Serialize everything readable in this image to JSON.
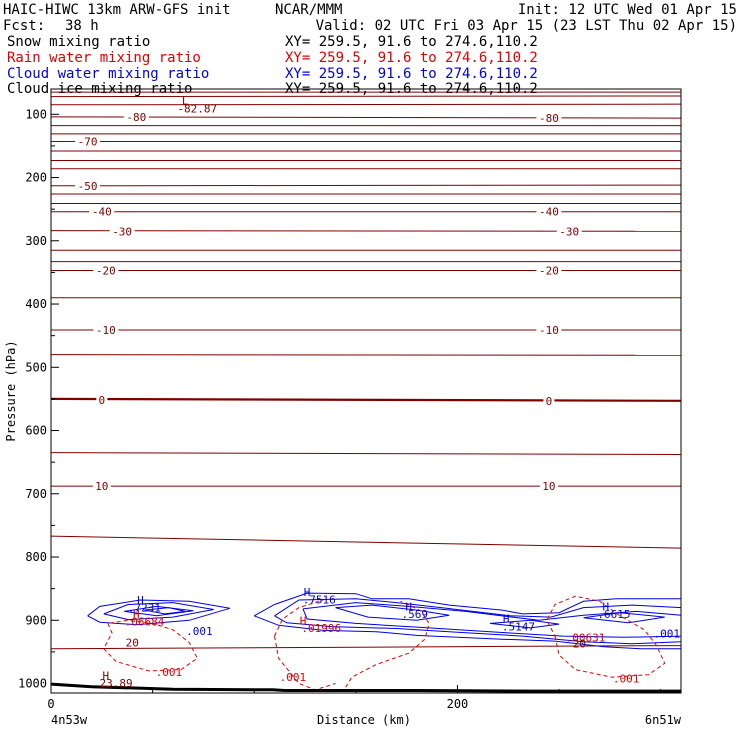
{
  "header": {
    "model": "HAIC-HIWC 13km ARW-GFS init",
    "org": "NCAR/MMM",
    "init": "Init: 12 UTC Wed 01 Apr 15",
    "fcst_label": "Fcst:",
    "fcst_value": "38 h",
    "valid": "Valid: 02 UTC Fri 03 Apr 15 (23 LST Thu 02 Apr 15)"
  },
  "fields": [
    {
      "name": "Snow mixing ratio",
      "xy": "XY= 259.5, 91.6 to 274.6,110.2",
      "color": "#000000"
    },
    {
      "name": "Rain water mixing ratio",
      "xy": "XY= 259.5, 91.6 to 274.6,110.2",
      "color": "#e00000"
    },
    {
      "name": "Cloud water mixing ratio",
      "xy": "XY= 259.5, 91.6 to 274.6,110.2",
      "color": "#0000e0"
    },
    {
      "name": "Cloud ice mixing ratio",
      "xy": "XY= 259.5, 91.6 to 274.6,110.2",
      "color": "#000000"
    }
  ],
  "colors": {
    "temperature": "#800000",
    "rain": "#e00000",
    "cloud": "#0000e0",
    "terrain": "#000000"
  },
  "chart_data": {
    "type": "cross-section contour",
    "xlabel": "Distance (km)",
    "ylabel": "Pressure (hPa)",
    "xlim": [
      0,
      310
    ],
    "ylim": [
      1015,
      60
    ],
    "x_ticks": [
      {
        "value": 0,
        "label": "0"
      },
      {
        "value": 200,
        "label": "200"
      }
    ],
    "y_ticks": [
      {
        "value": 100,
        "label": "100"
      },
      {
        "value": 200,
        "label": "200"
      },
      {
        "value": 300,
        "label": "300"
      },
      {
        "value": 400,
        "label": "400"
      },
      {
        "value": 500,
        "label": "500"
      },
      {
        "value": 600,
        "label": "600"
      },
      {
        "value": 700,
        "label": "700"
      },
      {
        "value": 800,
        "label": "800"
      },
      {
        "value": 900,
        "label": "900"
      },
      {
        "value": 1000,
        "label": "1000"
      }
    ],
    "left_endpoint": "4n53w",
    "right_endpoint": "6n51w",
    "isotherms": [
      {
        "p": 65,
        "p_end": 65
      },
      {
        "p": 72,
        "p_end": 71
      },
      {
        "p": 85,
        "p_end": 84
      },
      {
        "p": 104,
        "p_end": 106,
        "label": "-80"
      },
      {
        "p": 118,
        "p_end": 118
      },
      {
        "p": 131,
        "p_end": 131
      },
      {
        "p": 143,
        "p_end": 143,
        "label": "-70"
      },
      {
        "p": 158,
        "p_end": 158
      },
      {
        "p": 173,
        "p_end": 173
      },
      {
        "p": 186,
        "p_end": 186
      },
      {
        "p": 213,
        "p_end": 212,
        "label": "-50"
      },
      {
        "p": 226,
        "p_end": 226
      },
      {
        "p": 241,
        "p_end": 241
      },
      {
        "p": 254,
        "p_end": 254,
        "label": "-40"
      },
      {
        "p": 284,
        "p_end": 285,
        "label": "-30"
      },
      {
        "p": 315,
        "p_end": 315
      },
      {
        "p": 333,
        "p_end": 333
      },
      {
        "p": 347,
        "p_end": 347,
        "label": "-20"
      },
      {
        "p": 390,
        "p_end": 390
      },
      {
        "p": 441,
        "p_end": 441,
        "label": "-10"
      },
      {
        "p": 480,
        "p_end": 481
      },
      {
        "p": 550,
        "p_end": 553,
        "label": "0",
        "bold": true
      },
      {
        "p": 635,
        "p_end": 638
      },
      {
        "p": 688,
        "p_end": 688,
        "label": "10"
      },
      {
        "p": 767,
        "p_end": 786
      },
      {
        "p": 945,
        "p_end": 940
      }
    ],
    "isotherm_labels": [
      {
        "x": 42,
        "p": 104,
        "text": "-80"
      },
      {
        "x": 245,
        "p": 106,
        "text": "-80"
      },
      {
        "x": 18,
        "p": 143,
        "text": "-70"
      },
      {
        "x": 18,
        "p": 213,
        "text": "-50"
      },
      {
        "x": 25,
        "p": 254,
        "text": "-40"
      },
      {
        "x": 245,
        "p": 254,
        "text": "-40"
      },
      {
        "x": 35,
        "p": 285,
        "text": "-30"
      },
      {
        "x": 255,
        "p": 285,
        "text": "-30"
      },
      {
        "x": 27,
        "p": 347,
        "text": "-20"
      },
      {
        "x": 245,
        "p": 347,
        "text": "-20"
      },
      {
        "x": 27,
        "p": 441,
        "text": "-10"
      },
      {
        "x": 245,
        "p": 441,
        "text": "-10"
      },
      {
        "x": 25,
        "p": 552,
        "text": "0"
      },
      {
        "x": 245,
        "p": 553,
        "text": "0"
      },
      {
        "x": 25,
        "p": 688,
        "text": "10"
      },
      {
        "x": 245,
        "p": 688,
        "text": "10"
      }
    ],
    "extrema": [
      {
        "x": 66,
        "p": 78,
        "text": "L",
        "color": "temperature"
      },
      {
        "x": 72,
        "p": 91,
        "text": "-82.87",
        "color": "temperature"
      },
      {
        "x": 27,
        "p": 987,
        "text": "H",
        "color": "temperature"
      },
      {
        "x": 32,
        "p": 999,
        "text": "23.89",
        "color": "temperature"
      },
      {
        "x": 44,
        "p": 868,
        "text": "H",
        "color": "cloud"
      },
      {
        "x": 46,
        "p": 880,
        "text": ".7231",
        "color": "cloud"
      },
      {
        "x": 42,
        "p": 890,
        "text": "H",
        "color": "rain"
      },
      {
        "x": 46,
        "p": 902,
        "text": ".06684",
        "color": "rain"
      },
      {
        "x": 73,
        "p": 917,
        "text": ".001",
        "color": "cloud"
      },
      {
        "x": 40,
        "p": 935,
        "text": "20",
        "color": "temperature"
      },
      {
        "x": 58,
        "p": 982,
        "text": ".001",
        "color": "rain"
      },
      {
        "x": 126,
        "p": 855,
        "text": "H",
        "color": "cloud"
      },
      {
        "x": 132,
        "p": 867,
        "text": ".7516",
        "color": "cloud"
      },
      {
        "x": 124,
        "p": 900,
        "text": "H",
        "color": "rain"
      },
      {
        "x": 133,
        "p": 912,
        "text": ".01996",
        "color": "rain"
      },
      {
        "x": 119,
        "p": 990,
        "text": ".001",
        "color": "rain"
      },
      {
        "x": 176,
        "p": 878,
        "text": "H",
        "color": "cloud"
      },
      {
        "x": 179,
        "p": 890,
        "text": ".569",
        "color": "cloud"
      },
      {
        "x": 224,
        "p": 897,
        "text": "H",
        "color": "cloud"
      },
      {
        "x": 230,
        "p": 910,
        "text": ".5147",
        "color": "cloud"
      },
      {
        "x": 273,
        "p": 878,
        "text": "H",
        "color": "cloud"
      },
      {
        "x": 277,
        "p": 890,
        "text": ".6615",
        "color": "cloud"
      },
      {
        "x": 263,
        "p": 927,
        "text": ".00631",
        "color": "rain"
      },
      {
        "x": 260,
        "p": 937,
        "text": "20",
        "color": "temperature"
      },
      {
        "x": 303,
        "p": 921,
        "text": ".001",
        "color": "cloud"
      },
      {
        "x": 283,
        "p": 992,
        "text": ".001",
        "color": "rain"
      }
    ],
    "terrain": [
      {
        "x": 0,
        "p": 1001
      },
      {
        "x": 20,
        "p": 1005
      },
      {
        "x": 60,
        "p": 1009
      },
      {
        "x": 109,
        "p": 1010
      },
      {
        "x": 115,
        "p": 1011
      },
      {
        "x": 180,
        "p": 1011
      },
      {
        "x": 240,
        "p": 1012
      },
      {
        "x": 310,
        "p": 1012
      }
    ],
    "cloud_contours": [
      [
        [
          18,
          893
        ],
        [
          24,
          878
        ],
        [
          44,
          868
        ],
        [
          68,
          870
        ],
        [
          88,
          881
        ],
        [
          68,
          900
        ],
        [
          42,
          907
        ],
        [
          24,
          903
        ],
        [
          18,
          893
        ]
      ],
      [
        [
          26,
          890
        ],
        [
          38,
          875
        ],
        [
          60,
          872
        ],
        [
          80,
          883
        ],
        [
          60,
          895
        ],
        [
          38,
          899
        ],
        [
          26,
          890
        ]
      ],
      [
        [
          36,
          886
        ],
        [
          52,
          878
        ],
        [
          70,
          885
        ],
        [
          52,
          893
        ],
        [
          36,
          886
        ]
      ],
      [
        [
          46,
          884
        ],
        [
          58,
          880
        ],
        [
          66,
          886
        ],
        [
          56,
          890
        ],
        [
          46,
          884
        ]
      ],
      [
        [
          100,
          893
        ],
        [
          110,
          875
        ],
        [
          126,
          857
        ],
        [
          150,
          858
        ],
        [
          158,
          866
        ],
        [
          176,
          866
        ],
        [
          196,
          876
        ],
        [
          222,
          884
        ],
        [
          232,
          890
        ],
        [
          250,
          888
        ],
        [
          262,
          870
        ],
        [
          278,
          866
        ],
        [
          310,
          866
        ],
        [
          310,
          945
        ],
        [
          290,
          945
        ],
        [
          272,
          942
        ],
        [
          248,
          933
        ],
        [
          222,
          930
        ],
        [
          180,
          924
        ],
        [
          160,
          918
        ],
        [
          134,
          916
        ],
        [
          112,
          908
        ],
        [
          100,
          893
        ]
      ],
      [
        [
          110,
          893
        ],
        [
          122,
          868
        ],
        [
          150,
          866
        ],
        [
          170,
          872
        ],
        [
          192,
          880
        ],
        [
          226,
          893
        ],
        [
          246,
          895
        ],
        [
          262,
          880
        ],
        [
          286,
          876
        ],
        [
          310,
          880
        ],
        [
          310,
          934
        ],
        [
          286,
          937
        ],
        [
          262,
          934
        ],
        [
          232,
          925
        ],
        [
          200,
          919
        ],
        [
          170,
          913
        ],
        [
          138,
          910
        ],
        [
          116,
          904
        ],
        [
          110,
          893
        ]
      ],
      [
        [
          124,
          882
        ],
        [
          150,
          872
        ],
        [
          176,
          878
        ],
        [
          204,
          886
        ],
        [
          240,
          900
        ],
        [
          262,
          892
        ],
        [
          288,
          886
        ],
        [
          310,
          892
        ],
        [
          310,
          925
        ],
        [
          282,
          927
        ],
        [
          252,
          925
        ],
        [
          220,
          919
        ],
        [
          186,
          912
        ],
        [
          150,
          905
        ],
        [
          126,
          898
        ],
        [
          124,
          882
        ]
      ],
      [
        [
          140,
          880
        ],
        [
          158,
          876
        ],
        [
          180,
          884
        ],
        [
          196,
          892
        ],
        [
          180,
          900
        ],
        [
          156,
          895
        ],
        [
          140,
          880
        ]
      ],
      [
        [
          216,
          905
        ],
        [
          236,
          900
        ],
        [
          250,
          906
        ],
        [
          236,
          912
        ],
        [
          216,
          905
        ]
      ],
      [
        [
          262,
          896
        ],
        [
          280,
          888
        ],
        [
          302,
          895
        ],
        [
          284,
          904
        ],
        [
          262,
          896
        ]
      ]
    ],
    "rain_contours": [
      [
        [
          28,
          905
        ],
        [
          30,
          920
        ],
        [
          26,
          945
        ],
        [
          32,
          965
        ],
        [
          48,
          980
        ],
        [
          64,
          978
        ],
        [
          72,
          960
        ],
        [
          68,
          935
        ],
        [
          60,
          915
        ],
        [
          50,
          905
        ],
        [
          38,
          900
        ],
        [
          28,
          905
        ]
      ],
      [
        [
          110,
          925
        ],
        [
          112,
          960
        ],
        [
          122,
          1000
        ],
        [
          130,
          1010
        ],
        [
          140,
          1000
        ]
      ],
      [
        [
          110,
          925
        ],
        [
          114,
          898
        ],
        [
          122,
          880
        ],
        [
          134,
          868
        ]
      ],
      [
        [
          145,
          1006
        ],
        [
          148,
          990
        ],
        [
          160,
          970
        ],
        [
          176,
          952
        ],
        [
          184,
          930
        ],
        [
          186,
          905
        ],
        [
          182,
          885
        ],
        [
          172,
          870
        ]
      ],
      [
        [
          248,
          925
        ],
        [
          250,
          955
        ],
        [
          258,
          978
        ],
        [
          276,
          990
        ],
        [
          294,
          986
        ],
        [
          302,
          968
        ],
        [
          298,
          940
        ],
        [
          292,
          915
        ],
        [
          280,
          893
        ],
        [
          270,
          870
        ],
        [
          258,
          862
        ],
        [
          248,
          875
        ],
        [
          244,
          900
        ],
        [
          248,
          925
        ]
      ]
    ]
  }
}
